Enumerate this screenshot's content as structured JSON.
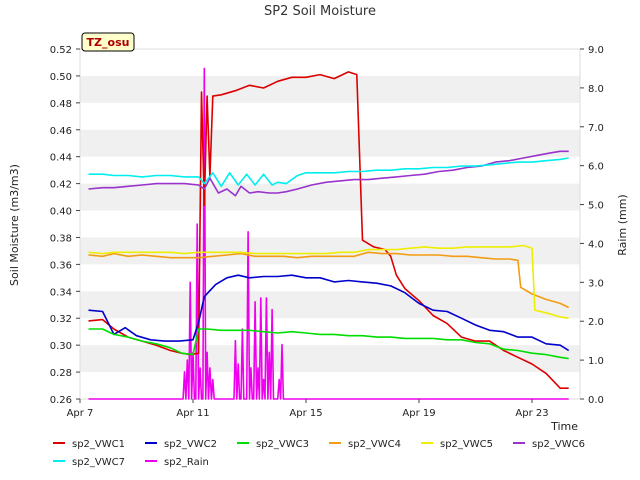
{
  "chart_data": {
    "type": "line",
    "title": "SP2 Soil Moisture",
    "xlabel": "Time",
    "ylabel": "Soil Moisture (m3/m3)",
    "y2label": "Raim (mm)",
    "badge": "TZ_osu",
    "x_ticks": [
      {
        "day": 7,
        "label": "Apr 7"
      },
      {
        "day": 11,
        "label": "Apr 11"
      },
      {
        "day": 15,
        "label": "Apr 15"
      },
      {
        "day": 19,
        "label": "Apr 19"
      },
      {
        "day": 23,
        "label": "Apr 23"
      }
    ],
    "xlim": [
      7,
      24.7
    ],
    "ylim": [
      0.26,
      0.52
    ],
    "y_ticks": [
      "0.26",
      "0.28",
      "0.30",
      "0.32",
      "0.34",
      "0.36",
      "0.38",
      "0.40",
      "0.42",
      "0.44",
      "0.46",
      "0.48",
      "0.50",
      "0.52"
    ],
    "y2lim": [
      0,
      9
    ],
    "y2_ticks": [
      "0.0",
      "1.0",
      "2.0",
      "3.0",
      "4.0",
      "5.0",
      "6.0",
      "7.0",
      "8.0",
      "9.0"
    ],
    "grid": "alternating horizontal bands",
    "legend_position": "bottom",
    "series": [
      {
        "name": "sp2_VWC1",
        "color": "#dd0000",
        "axis": "left",
        "x": [
          7.3,
          7.8,
          8.2,
          8.7,
          9.2,
          9.7,
          10.2,
          10.6,
          10.9,
          11.2,
          11.3,
          11.4,
          11.5,
          11.6,
          11.7,
          12.0,
          12.5,
          13.0,
          13.5,
          14.0,
          14.5,
          15.0,
          15.5,
          16.0,
          16.5,
          16.8,
          17.0,
          17.4,
          17.8,
          18.0,
          18.2,
          18.5,
          19.0,
          19.5,
          20.0,
          20.5,
          21.0,
          21.5,
          22.0,
          22.5,
          23.0,
          23.5,
          24.0,
          24.3
        ],
        "y": [
          0.318,
          0.319,
          0.312,
          0.306,
          0.303,
          0.3,
          0.296,
          0.294,
          0.293,
          0.294,
          0.488,
          0.404,
          0.485,
          0.425,
          0.485,
          0.486,
          0.489,
          0.493,
          0.491,
          0.496,
          0.499,
          0.499,
          0.501,
          0.498,
          0.503,
          0.501,
          0.378,
          0.373,
          0.371,
          0.366,
          0.352,
          0.342,
          0.333,
          0.322,
          0.316,
          0.306,
          0.303,
          0.303,
          0.296,
          0.291,
          0.286,
          0.279,
          0.268,
          0.268
        ]
      },
      {
        "name": "sp2_VWC2",
        "color": "#0000cc",
        "axis": "left",
        "x": [
          7.3,
          7.8,
          8.2,
          8.6,
          9.0,
          9.5,
          10.0,
          10.5,
          11.0,
          11.2,
          11.4,
          11.8,
          12.2,
          12.6,
          13.0,
          13.5,
          14.0,
          14.5,
          15.0,
          15.5,
          16.0,
          16.5,
          17.0,
          17.5,
          18.0,
          18.5,
          19.0,
          19.5,
          20.0,
          20.5,
          21.0,
          21.5,
          22.0,
          22.5,
          23.0,
          23.5,
          24.0,
          24.3
        ],
        "y": [
          0.326,
          0.325,
          0.308,
          0.313,
          0.307,
          0.304,
          0.303,
          0.303,
          0.304,
          0.317,
          0.336,
          0.345,
          0.35,
          0.352,
          0.35,
          0.351,
          0.351,
          0.352,
          0.35,
          0.35,
          0.347,
          0.348,
          0.347,
          0.346,
          0.344,
          0.339,
          0.331,
          0.326,
          0.325,
          0.32,
          0.315,
          0.311,
          0.31,
          0.306,
          0.306,
          0.301,
          0.3,
          0.296
        ]
      },
      {
        "name": "sp2_VWC3",
        "color": "#00dd00",
        "axis": "left",
        "x": [
          7.3,
          7.8,
          8.2,
          8.7,
          9.2,
          9.7,
          10.2,
          10.6,
          11.0,
          11.2,
          11.5,
          12.0,
          12.5,
          13.0,
          13.5,
          14.0,
          14.5,
          15.0,
          15.5,
          16.0,
          16.5,
          17.0,
          17.5,
          18.0,
          18.5,
          19.0,
          19.5,
          20.0,
          20.5,
          21.0,
          21.5,
          22.0,
          22.5,
          23.0,
          23.5,
          24.0,
          24.3
        ],
        "y": [
          0.312,
          0.312,
          0.308,
          0.306,
          0.303,
          0.301,
          0.298,
          0.294,
          0.293,
          0.312,
          0.312,
          0.311,
          0.311,
          0.311,
          0.31,
          0.309,
          0.31,
          0.309,
          0.308,
          0.308,
          0.307,
          0.307,
          0.306,
          0.306,
          0.305,
          0.305,
          0.305,
          0.304,
          0.304,
          0.302,
          0.301,
          0.297,
          0.296,
          0.294,
          0.293,
          0.291,
          0.29
        ]
      },
      {
        "name": "sp2_VWC4",
        "color": "#f39c12",
        "axis": "left",
        "x": [
          7.3,
          7.8,
          8.2,
          8.7,
          9.2,
          9.7,
          10.2,
          10.7,
          11.2,
          11.7,
          12.2,
          12.7,
          13.2,
          13.7,
          14.2,
          14.7,
          15.2,
          15.7,
          16.2,
          16.7,
          17.2,
          17.7,
          18.2,
          18.7,
          19.2,
          19.7,
          20.2,
          20.7,
          21.2,
          21.7,
          22.2,
          22.5,
          22.6,
          23.0,
          23.5,
          24.0,
          24.3
        ],
        "y": [
          0.367,
          0.366,
          0.368,
          0.366,
          0.367,
          0.366,
          0.365,
          0.365,
          0.365,
          0.366,
          0.367,
          0.368,
          0.366,
          0.366,
          0.366,
          0.365,
          0.366,
          0.366,
          0.366,
          0.366,
          0.369,
          0.368,
          0.368,
          0.367,
          0.367,
          0.367,
          0.366,
          0.366,
          0.365,
          0.364,
          0.364,
          0.363,
          0.343,
          0.338,
          0.334,
          0.331,
          0.328
        ]
      },
      {
        "name": "sp2_VWC5",
        "color": "#eeee00",
        "axis": "left",
        "x": [
          7.3,
          7.8,
          8.2,
          8.7,
          9.2,
          9.7,
          10.2,
          10.7,
          11.2,
          11.7,
          12.2,
          12.7,
          13.2,
          13.7,
          14.2,
          14.7,
          15.2,
          15.7,
          16.2,
          16.7,
          17.2,
          17.7,
          18.2,
          18.7,
          19.2,
          19.7,
          20.2,
          20.7,
          21.2,
          21.7,
          22.2,
          22.7,
          23.0,
          23.1,
          23.5,
          24.0,
          24.3
        ],
        "y": [
          0.369,
          0.368,
          0.369,
          0.369,
          0.369,
          0.369,
          0.369,
          0.368,
          0.369,
          0.369,
          0.369,
          0.369,
          0.368,
          0.368,
          0.368,
          0.368,
          0.368,
          0.368,
          0.369,
          0.369,
          0.371,
          0.371,
          0.371,
          0.372,
          0.373,
          0.372,
          0.372,
          0.373,
          0.373,
          0.373,
          0.373,
          0.374,
          0.372,
          0.326,
          0.324,
          0.321,
          0.32
        ]
      },
      {
        "name": "sp2_VWC6",
        "color": "#9933cc",
        "axis": "left",
        "x": [
          7.3,
          7.8,
          8.2,
          8.7,
          9.2,
          9.7,
          10.2,
          10.7,
          11.2,
          11.4,
          11.6,
          11.9,
          12.2,
          12.5,
          12.7,
          13.0,
          13.3,
          13.7,
          14.0,
          14.3,
          14.7,
          15.2,
          15.7,
          16.2,
          16.7,
          17.2,
          17.7,
          18.2,
          18.7,
          19.2,
          19.7,
          20.2,
          20.7,
          21.2,
          21.7,
          22.2,
          22.7,
          23.2,
          23.7,
          24.0,
          24.3
        ],
        "y": [
          0.416,
          0.417,
          0.417,
          0.418,
          0.419,
          0.42,
          0.42,
          0.42,
          0.419,
          0.416,
          0.424,
          0.413,
          0.416,
          0.411,
          0.418,
          0.413,
          0.414,
          0.413,
          0.413,
          0.414,
          0.416,
          0.419,
          0.421,
          0.422,
          0.423,
          0.423,
          0.424,
          0.425,
          0.426,
          0.427,
          0.429,
          0.43,
          0.432,
          0.433,
          0.436,
          0.437,
          0.439,
          0.441,
          0.443,
          0.444,
          0.444
        ]
      },
      {
        "name": "sp2_VWC7",
        "color": "#00eeee",
        "axis": "left",
        "x": [
          7.3,
          7.8,
          8.2,
          8.7,
          9.2,
          9.7,
          10.2,
          10.7,
          11.2,
          11.4,
          11.7,
          12.0,
          12.3,
          12.6,
          12.9,
          13.2,
          13.5,
          13.8,
          14.0,
          14.3,
          14.7,
          15.0,
          15.5,
          16.0,
          16.5,
          17.0,
          17.5,
          18.0,
          18.5,
          19.0,
          19.5,
          20.0,
          20.5,
          21.0,
          21.5,
          22.0,
          22.5,
          23.0,
          23.5,
          24.0,
          24.3
        ],
        "y": [
          0.427,
          0.427,
          0.426,
          0.426,
          0.425,
          0.426,
          0.426,
          0.425,
          0.425,
          0.42,
          0.428,
          0.418,
          0.428,
          0.419,
          0.427,
          0.419,
          0.427,
          0.419,
          0.421,
          0.42,
          0.426,
          0.428,
          0.428,
          0.428,
          0.429,
          0.429,
          0.43,
          0.43,
          0.431,
          0.431,
          0.432,
          0.432,
          0.433,
          0.433,
          0.434,
          0.435,
          0.436,
          0.436,
          0.437,
          0.438,
          0.439
        ]
      },
      {
        "name": "sp2_Rain",
        "color": "#ee00ee",
        "axis": "right",
        "x": [
          7.3,
          10.65,
          10.7,
          10.75,
          10.8,
          10.85,
          10.9,
          10.95,
          11.0,
          11.05,
          11.1,
          11.15,
          11.2,
          11.25,
          11.3,
          11.35,
          11.4,
          11.45,
          11.5,
          11.55,
          11.6,
          11.65,
          11.7,
          11.75,
          11.8,
          11.85,
          11.9,
          11.95,
          12.0,
          12.45,
          12.5,
          12.55,
          12.6,
          12.65,
          12.7,
          12.75,
          12.8,
          12.85,
          12.9,
          12.95,
          13.0,
          13.05,
          13.1,
          13.15,
          13.2,
          13.25,
          13.3,
          13.35,
          13.4,
          13.45,
          13.5,
          13.55,
          13.6,
          13.65,
          13.7,
          13.75,
          13.8,
          13.85,
          13.9,
          13.95,
          14.0,
          14.05,
          14.1,
          14.15,
          14.2,
          14.25,
          24.3
        ],
        "y": [
          0,
          0,
          0.7,
          0,
          1.0,
          0,
          3.0,
          0,
          1.2,
          0,
          0,
          4.5,
          0,
          0.8,
          0,
          0,
          8.5,
          0,
          1.2,
          0,
          0.8,
          0,
          0.5,
          0,
          0,
          0,
          0,
          0,
          0,
          0,
          1.5,
          0,
          0.9,
          0,
          0,
          1.8,
          0,
          0,
          0,
          4.3,
          0,
          0.8,
          0,
          0,
          2.5,
          0,
          0.8,
          0,
          2.6,
          0,
          0.5,
          0,
          2.6,
          0,
          1.2,
          0,
          2.3,
          0,
          0,
          0,
          0,
          0.5,
          0,
          1.4,
          0,
          0,
          0
        ]
      }
    ]
  }
}
